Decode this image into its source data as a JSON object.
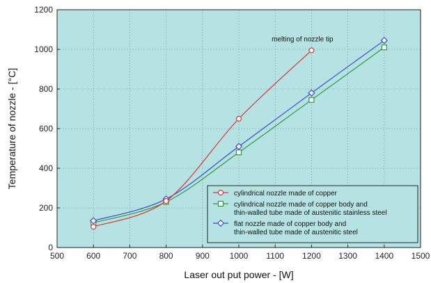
{
  "chart_data": {
    "type": "line",
    "xlabel": "Laser out put power - [W]",
    "ylabel": "Temperature of nozzle - [°C]",
    "xlim": [
      500,
      1500
    ],
    "ylim": [
      0,
      1200
    ],
    "xticks": [
      500,
      600,
      700,
      800,
      900,
      1000,
      1100,
      1200,
      1300,
      1400,
      1500
    ],
    "yticks": [
      0,
      200,
      400,
      600,
      800,
      1000,
      1200
    ],
    "grid": true,
    "legend_position": "bottom-right",
    "annotations": [
      {
        "text": "melting of nozzle tip",
        "x": 1175,
        "y": 1040
      }
    ],
    "series": [
      {
        "name": [
          "cylindrical nozzle made of copper"
        ],
        "color": "#e03030",
        "marker": "circle",
        "x": [
          600,
          800,
          1000,
          1200
        ],
        "y": [
          105,
          235,
          650,
          995
        ]
      },
      {
        "name": [
          "cylindrical nozzle made of copper body and",
          "thin-walled tube made of austenitic stainless steel"
        ],
        "color": "#2f9a3a",
        "marker": "square",
        "x": [
          600,
          800,
          1000,
          1200,
          1400
        ],
        "y": [
          125,
          230,
          480,
          745,
          1010
        ]
      },
      {
        "name": [
          "flat nozzle made of copper body and",
          "thin-walled tube made of austenitic steel"
        ],
        "color": "#3a48d8",
        "marker": "diamond",
        "x": [
          600,
          800,
          1000,
          1200,
          1400
        ],
        "y": [
          135,
          245,
          510,
          780,
          1045
        ]
      }
    ]
  }
}
